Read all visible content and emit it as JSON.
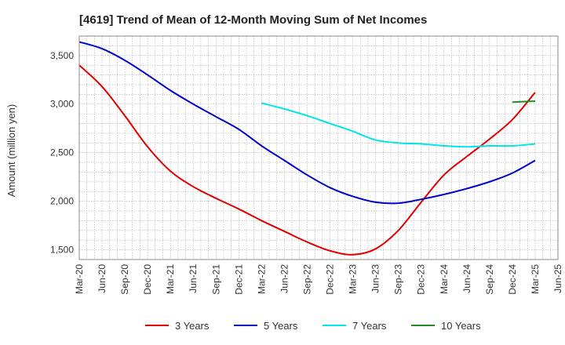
{
  "chart_data": {
    "type": "line",
    "title": "[4619]  Trend of Mean of 12-Month Moving Sum of Net Incomes",
    "xlabel": "",
    "ylabel": "Amount (million yen)",
    "x_ticks": [
      "Mar-20",
      "Jun-20",
      "Sep-20",
      "Dec-20",
      "Mar-21",
      "Jun-21",
      "Sep-21",
      "Dec-21",
      "Mar-22",
      "Jun-22",
      "Sep-22",
      "Dec-22",
      "Mar-23",
      "Jun-23",
      "Sep-23",
      "Dec-23",
      "Mar-24",
      "Jun-24",
      "Sep-24",
      "Dec-24",
      "Mar-25",
      "Jun-25"
    ],
    "y_ticks": [
      1500,
      2000,
      2500,
      3000,
      3500
    ],
    "y_tick_labels": [
      "1,500",
      "2,000",
      "2,500",
      "3,000",
      "3,500"
    ],
    "ylim": [
      1400,
      3700
    ],
    "xlim": [
      "2020-03",
      "2025-06"
    ],
    "grid": true,
    "legend_position": "bottom",
    "series": [
      {
        "name": "3 Years",
        "color": "#e00000",
        "points": [
          [
            "2020-03",
            3400
          ],
          [
            "2020-06",
            3180
          ],
          [
            "2020-09",
            2880
          ],
          [
            "2020-12",
            2560
          ],
          [
            "2021-03",
            2310
          ],
          [
            "2021-06",
            2150
          ],
          [
            "2021-09",
            2030
          ],
          [
            "2021-12",
            1920
          ],
          [
            "2022-03",
            1800
          ],
          [
            "2022-06",
            1690
          ],
          [
            "2022-09",
            1580
          ],
          [
            "2022-12",
            1490
          ],
          [
            "2023-03",
            1450
          ],
          [
            "2023-06",
            1510
          ],
          [
            "2023-09",
            1700
          ],
          [
            "2023-12",
            1990
          ],
          [
            "2024-03",
            2270
          ],
          [
            "2024-06",
            2460
          ],
          [
            "2024-09",
            2640
          ],
          [
            "2024-12",
            2840
          ],
          [
            "2025-03",
            3120
          ]
        ]
      },
      {
        "name": "5 Years",
        "color": "#0000cc",
        "points": [
          [
            "2020-03",
            3640
          ],
          [
            "2020-06",
            3570
          ],
          [
            "2020-09",
            3450
          ],
          [
            "2020-12",
            3300
          ],
          [
            "2021-03",
            3140
          ],
          [
            "2021-06",
            3000
          ],
          [
            "2021-09",
            2870
          ],
          [
            "2021-12",
            2740
          ],
          [
            "2022-03",
            2570
          ],
          [
            "2022-06",
            2420
          ],
          [
            "2022-09",
            2270
          ],
          [
            "2022-12",
            2140
          ],
          [
            "2023-03",
            2050
          ],
          [
            "2023-06",
            1990
          ],
          [
            "2023-09",
            1980
          ],
          [
            "2023-12",
            2020
          ],
          [
            "2024-03",
            2070
          ],
          [
            "2024-06",
            2130
          ],
          [
            "2024-09",
            2200
          ],
          [
            "2024-12",
            2290
          ],
          [
            "2025-03",
            2420
          ]
        ]
      },
      {
        "name": "7 Years",
        "color": "#00e5e5",
        "points": [
          [
            "2022-03",
            3010
          ],
          [
            "2022-06",
            2950
          ],
          [
            "2022-09",
            2880
          ],
          [
            "2022-12",
            2800
          ],
          [
            "2023-03",
            2720
          ],
          [
            "2023-06",
            2630
          ],
          [
            "2023-09",
            2600
          ],
          [
            "2023-12",
            2590
          ],
          [
            "2024-03",
            2570
          ],
          [
            "2024-06",
            2560
          ],
          [
            "2024-09",
            2570
          ],
          [
            "2024-12",
            2570
          ],
          [
            "2025-03",
            2590
          ]
        ]
      },
      {
        "name": "10 Years",
        "color": "#228b22",
        "points": [
          [
            "2024-12",
            3020
          ],
          [
            "2025-03",
            3030
          ]
        ]
      }
    ]
  }
}
